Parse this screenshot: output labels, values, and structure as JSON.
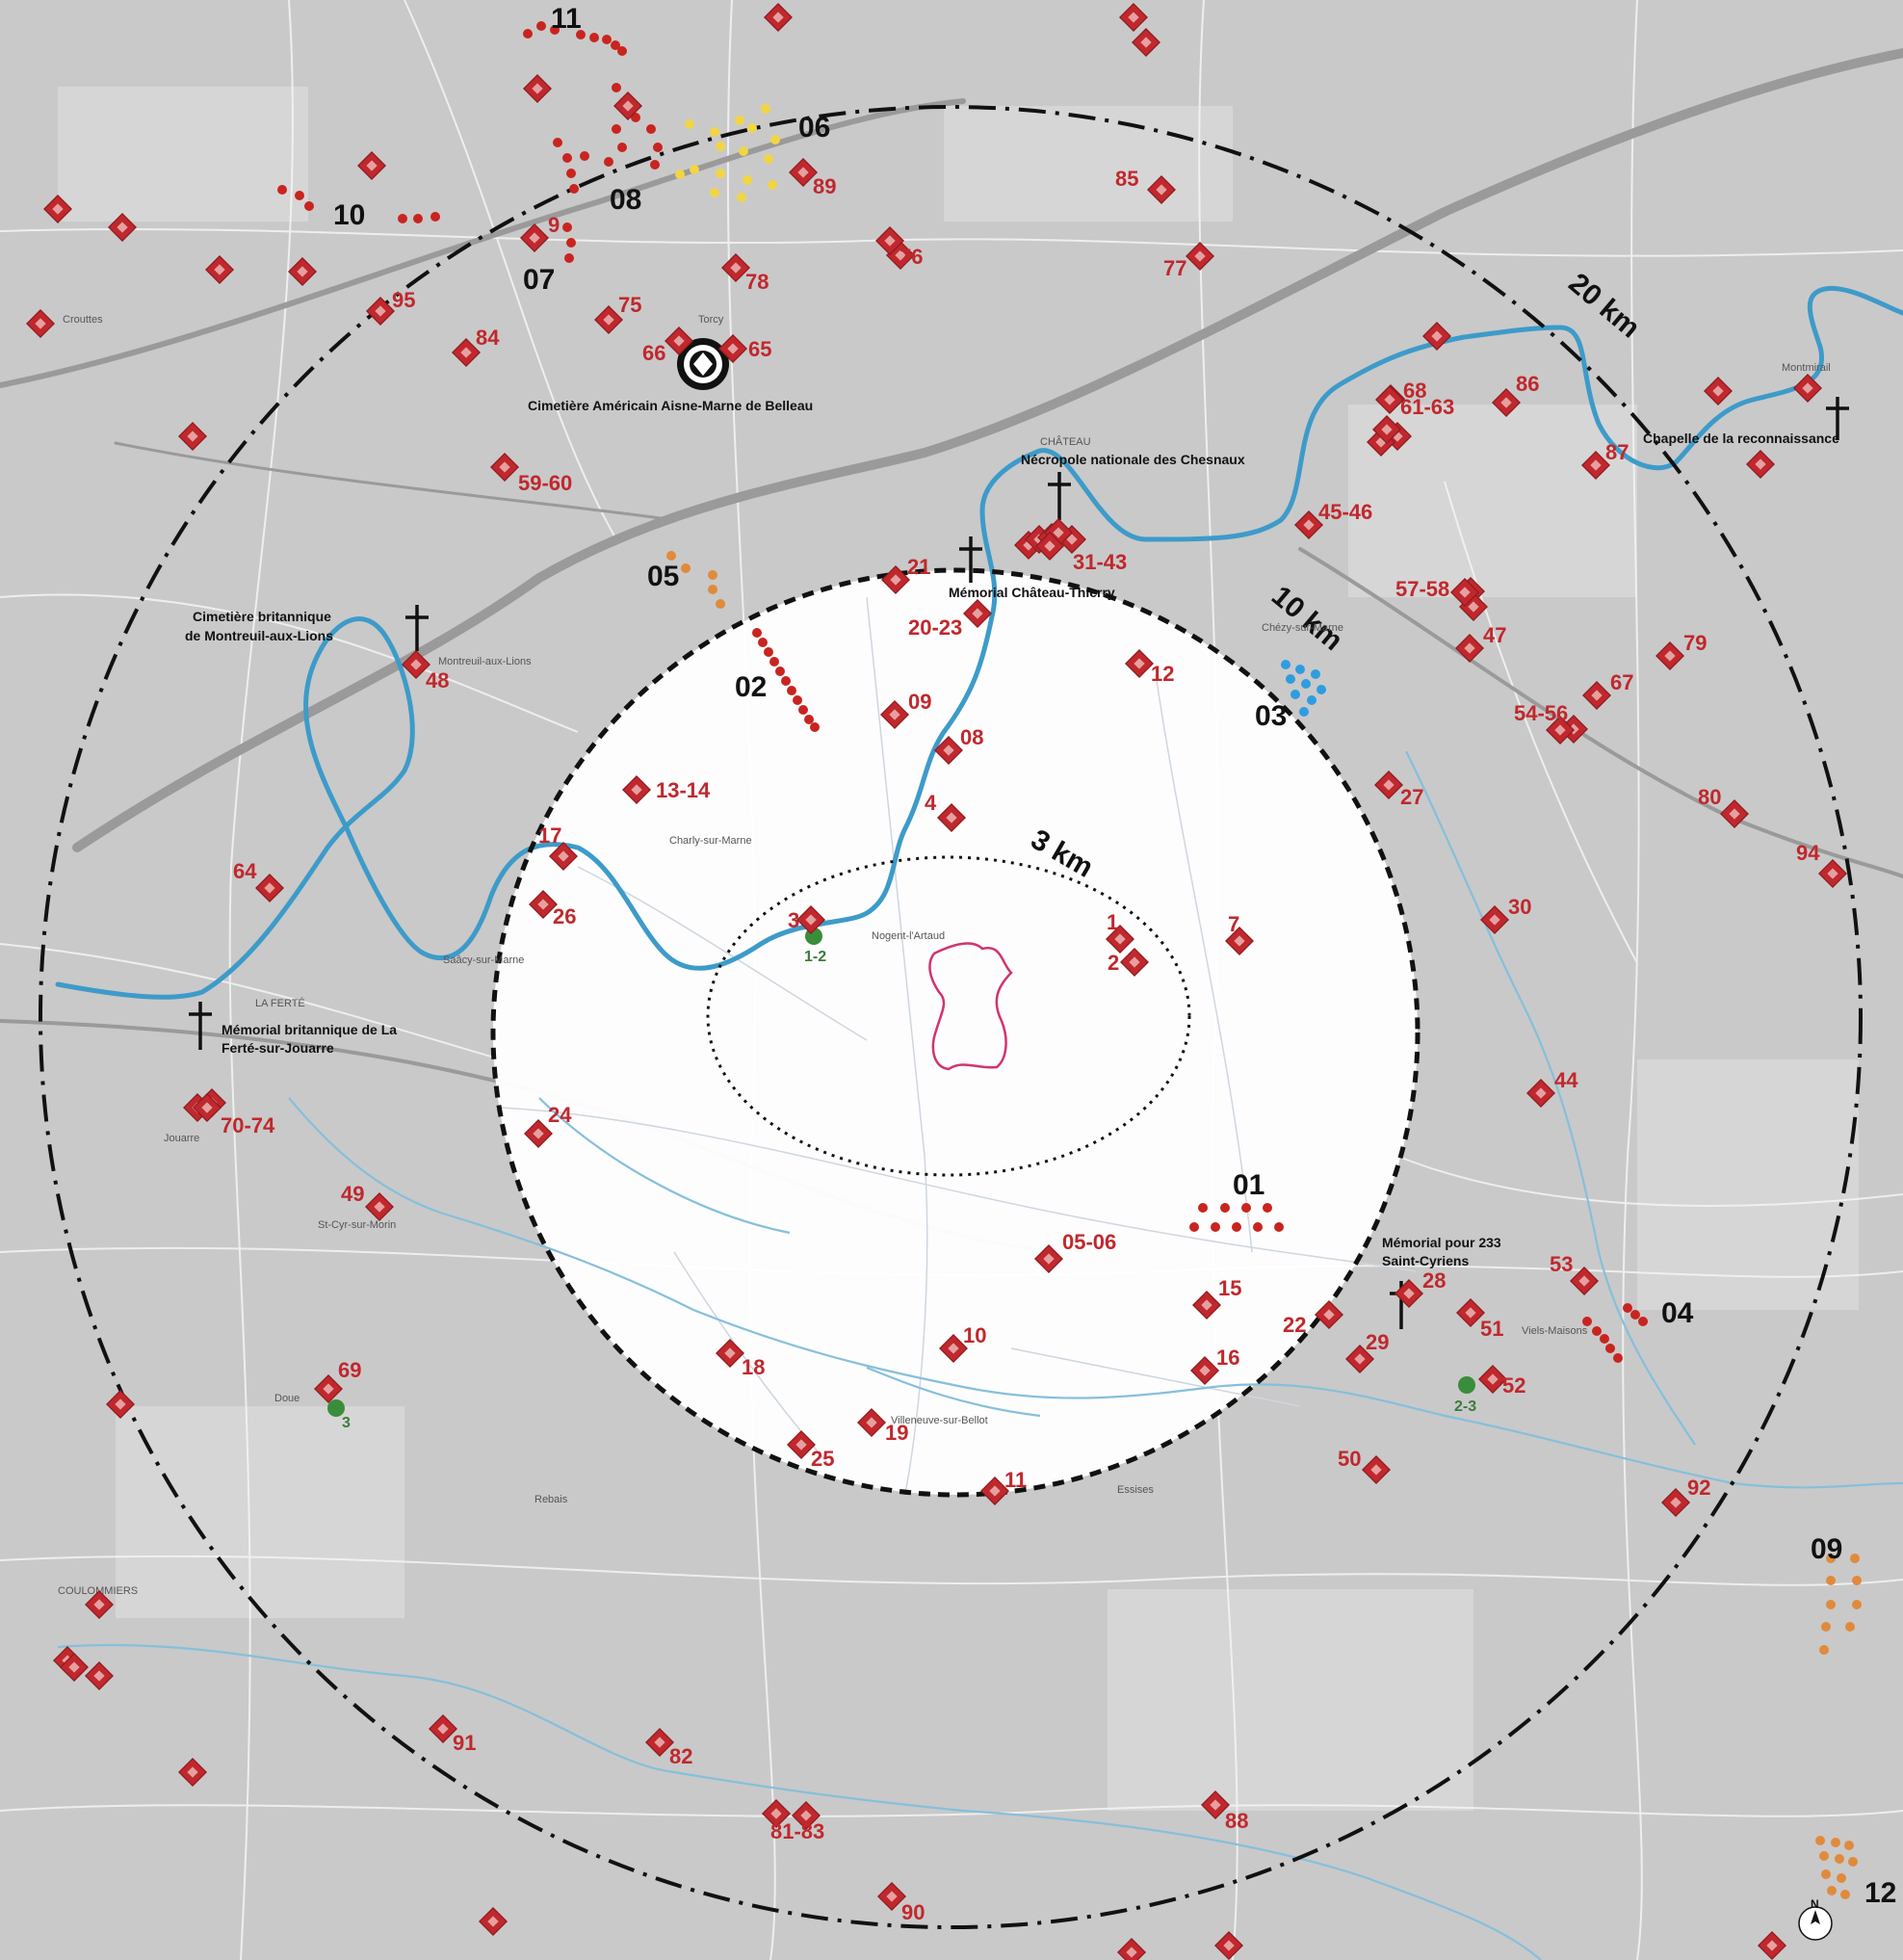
{
  "rings": [
    {
      "label": "20 km",
      "style": "dash-dot"
    },
    {
      "label": "10 km",
      "style": "dashed"
    },
    {
      "label": "3 km",
      "style": "dotted"
    }
  ],
  "colors": {
    "marker": "#c0282d",
    "river": "#3d9bc9",
    "site_outline": "#d1336f",
    "group_red": "#c9241f",
    "group_yellow": "#f2d544",
    "group_blue": "#2e9de0",
    "group_orange": "#e08a3c",
    "green_site": "#3a8d3a",
    "background": "#c9c9c9"
  },
  "site_labels": {
    "belleau": "Cimetière Américain Aisne-Marne de Belleau",
    "chesnaux": "Nécropole nationale des Chesnaux",
    "reconnaissance": "Chapelle de la reconnaissance",
    "montreuil_1": "Cimetière britannique",
    "montreuil_2": "de Montreuil-aux-Lions",
    "memorial_ct": "Mémorial Château-Thierry",
    "ferte_1": "Mémorial britannique de La",
    "ferte_2": "Ferté-sur-Jouarre",
    "cyriens_1": "Mémorial pour 233",
    "cyriens_2": "Saint-Cyriens"
  },
  "markers": [
    "1",
    "2",
    "3",
    "4",
    "7",
    "08",
    "09",
    "10",
    "11",
    "12",
    "13-14",
    "15",
    "16",
    "17",
    "18",
    "19",
    "20-23",
    "21",
    "22",
    "24",
    "25",
    "26",
    "27",
    "28",
    "29",
    "30",
    "31-43",
    "44",
    "45-46",
    "47",
    "48",
    "49",
    "50",
    "51",
    "52",
    "53",
    "54-56",
    "57-58",
    "59-60",
    "61-63",
    "64",
    "65",
    "66",
    "67",
    "68",
    "69",
    "70-74",
    "75",
    "76",
    "77",
    "78",
    "79",
    "80",
    "81-83",
    "82",
    "84",
    "85",
    "86",
    "87",
    "88",
    "89",
    "90",
    "91",
    "92",
    "94",
    "95",
    "05-06",
    "9"
  ],
  "groups": [
    "01",
    "02",
    "03",
    "04",
    "05",
    "06",
    "07",
    "08",
    "09",
    "10",
    "11",
    "12"
  ],
  "small_labels": {
    "green_a": "1-2",
    "green_b": "2-3",
    "green_c": "3",
    "north": "N",
    "towns": [
      "COULOMMIERS",
      "Charly-sur-Marne",
      "Nogent-l'Artaud",
      "LA FERTÉ",
      "CHÂTEAU",
      "Villeneuve-sur-Bellot",
      "Jouarre",
      "St-Cyr-sur-Morin",
      "Doue",
      "Montreuil-aux-Lions",
      "Viels-Maisons",
      "Montmirail",
      "Crouttes",
      "Essises",
      "Torcy",
      "Chézy-sur-Marne",
      "Rebais",
      "Saâcy-sur-Marne"
    ]
  }
}
